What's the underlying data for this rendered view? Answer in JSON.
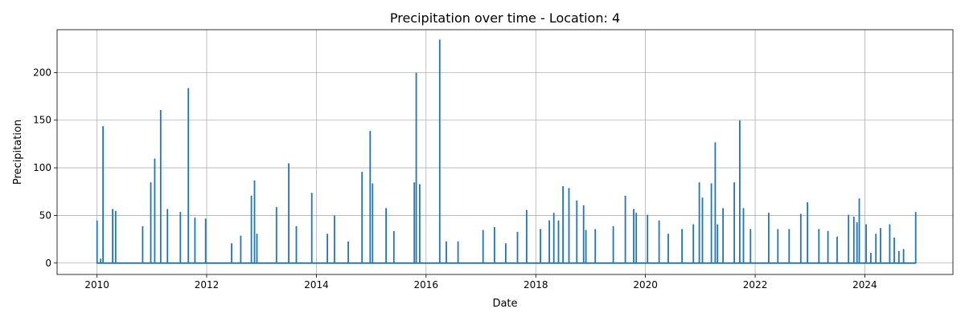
{
  "chart_data": {
    "type": "line",
    "title": "Precipitation over time - Location: 4",
    "xlabel": "Date",
    "ylabel": "Precipitation",
    "x_ticks": [
      "2010",
      "2012",
      "2014",
      "2016",
      "2018",
      "2020",
      "2022",
      "2024"
    ],
    "y_ticks": [
      0,
      50,
      100,
      150,
      200
    ],
    "xlim": [
      "2009-04-10",
      "2025-08-10"
    ],
    "ylim": [
      -12,
      245
    ],
    "grid": true,
    "line_color": "#1f77b4",
    "series": [
      {
        "name": "",
        "x": [
          "2010-01-01",
          "2010-01-25",
          "2010-02-10",
          "2010-04-15",
          "2010-05-05",
          "2010-11-01",
          "2010-12-25",
          "2011-01-20",
          "2011-03-01",
          "2011-04-15",
          "2011-07-10",
          "2011-09-01",
          "2011-10-15",
          "2011-12-25",
          "2012-06-15",
          "2012-08-15",
          "2012-10-25",
          "2012-11-15",
          "2012-12-01",
          "2013-04-10",
          "2013-07-01",
          "2013-08-20",
          "2013-12-01",
          "2014-03-15",
          "2014-05-01",
          "2014-08-01",
          "2014-11-01",
          "2014-12-25",
          "2015-01-10",
          "2015-04-10",
          "2015-06-01",
          "2015-10-15",
          "2015-10-28",
          "2015-11-20",
          "2016-04-01",
          "2016-05-15",
          "2016-08-01",
          "2017-01-15",
          "2017-04-01",
          "2017-06-15",
          "2017-09-01",
          "2017-11-01",
          "2018-02-01",
          "2018-04-01",
          "2018-05-01",
          "2018-06-01",
          "2018-07-01",
          "2018-08-10",
          "2018-10-01",
          "2018-11-15",
          "2018-12-01",
          "2019-02-01",
          "2019-06-01",
          "2019-08-20",
          "2019-10-15",
          "2019-11-01",
          "2020-01-15",
          "2020-04-01",
          "2020-06-01",
          "2020-09-01",
          "2020-11-15",
          "2020-12-25",
          "2021-01-15",
          "2021-03-15",
          "2021-04-10",
          "2021-04-25",
          "2021-06-01",
          "2021-08-15",
          "2021-09-20",
          "2021-10-15",
          "2021-12-01",
          "2022-04-01",
          "2022-06-01",
          "2022-08-15",
          "2022-11-01",
          "2022-12-15",
          "2023-03-01",
          "2023-05-01",
          "2023-07-01",
          "2023-09-15",
          "2023-10-20",
          "2023-11-10",
          "2023-11-25",
          "2024-01-10",
          "2024-02-10",
          "2024-03-15",
          "2024-04-15",
          "2024-05-20",
          "2024-06-15",
          "2024-07-15",
          "2024-08-15",
          "2024-09-15",
          "2024-10-20",
          "2024-11-20",
          "2024-12-05"
        ],
        "y": [
          44,
          4,
          143,
          56,
          54,
          38,
          84,
          109,
          160,
          56,
          53,
          183,
          47,
          46,
          20,
          28,
          70,
          86,
          30,
          58,
          104,
          38,
          73,
          30,
          49,
          22,
          95,
          138,
          83,
          57,
          33,
          84,
          199,
          82,
          234,
          22,
          22,
          34,
          37,
          20,
          32,
          55,
          35,
          44,
          52,
          44,
          80,
          78,
          65,
          60,
          34,
          35,
          38,
          70,
          56,
          52,
          50,
          44,
          30,
          35,
          40,
          84,
          68,
          83,
          126,
          40,
          57,
          84,
          149,
          57,
          35,
          52,
          35,
          35,
          51,
          63,
          35,
          33,
          27,
          50,
          48,
          42,
          67,
          40,
          10,
          30,
          36,
          0,
          40,
          26,
          12,
          14,
          0,
          0,
          53
        ]
      }
    ]
  }
}
